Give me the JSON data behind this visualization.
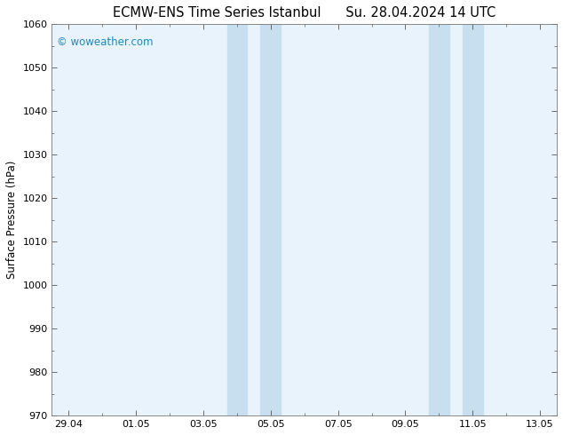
{
  "title_left": "ECMW-ENS Time Series Istanbul",
  "title_right": "Su. 28.04.2024 14 UTC",
  "ylabel": "Surface Pressure (hPa)",
  "ylim": [
    970,
    1060
  ],
  "ytick_step": 10,
  "background_color": "#ffffff",
  "plot_bg_color": "#e8f3fb",
  "watermark": "© woweather.com",
  "watermark_color": "#2288bb",
  "x_labels": [
    "29.04",
    "01.05",
    "03.05",
    "05.05",
    "07.05",
    "09.05",
    "11.05",
    "13.05"
  ],
  "x_positions": [
    0,
    2,
    4,
    6,
    8,
    10,
    12,
    14
  ],
  "shade_bands": [
    {
      "x_start": 4.7,
      "x_end": 5.3
    },
    {
      "x_start": 5.7,
      "x_end": 6.3
    },
    {
      "x_start": 10.7,
      "x_end": 11.3
    },
    {
      "x_start": 11.7,
      "x_end": 12.3
    }
  ],
  "shade_color": "#c8dff0",
  "xlim": [
    -0.5,
    14.5
  ],
  "title_fontsize": 10.5,
  "axis_fontsize": 8.5,
  "watermark_fontsize": 8.5,
  "tick_label_fontsize": 8
}
